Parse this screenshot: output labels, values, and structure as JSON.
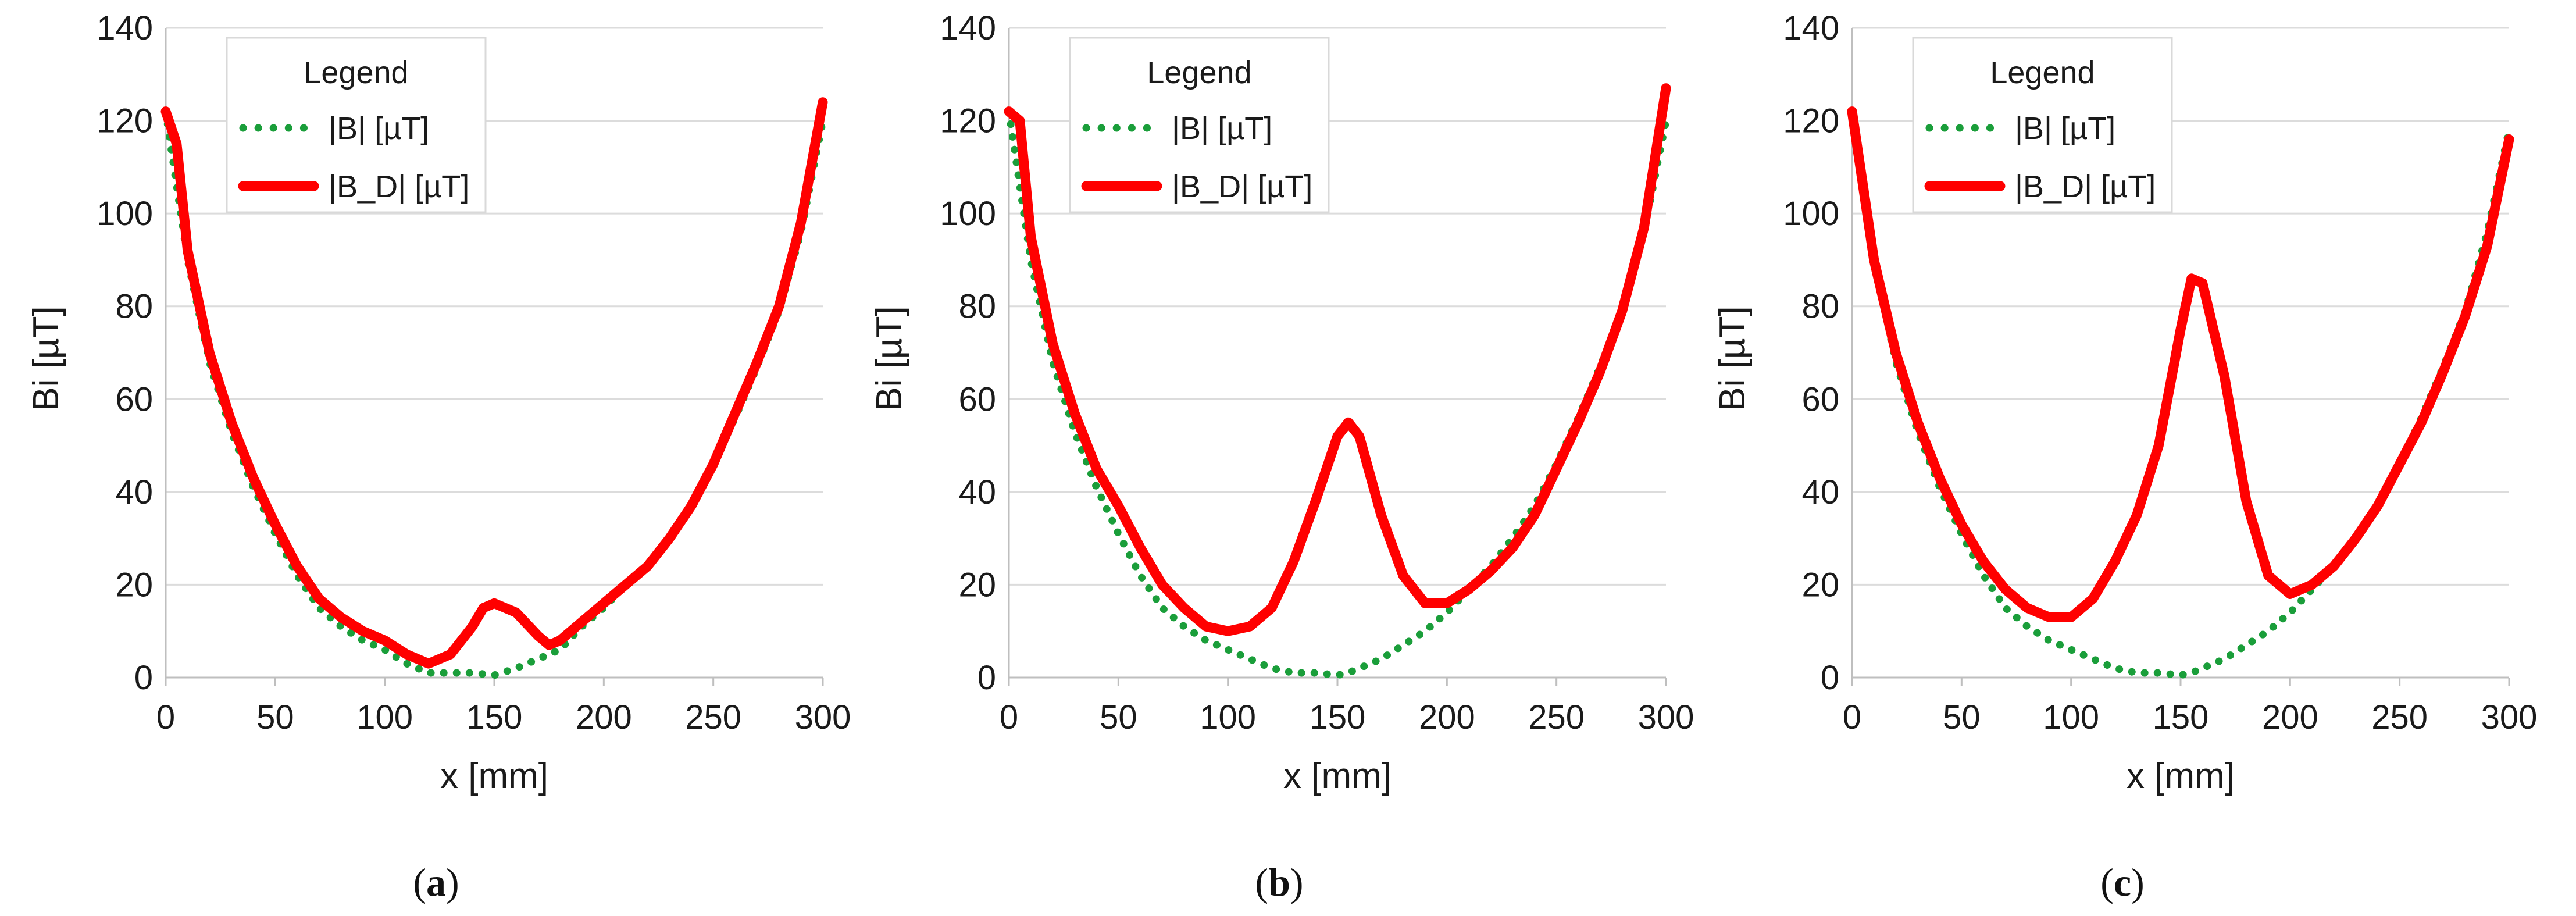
{
  "colors": {
    "series_b": "#1a9e3a",
    "series_bd": "#ff0000",
    "grid": "#dcdcdc",
    "axis": "#bfbfbf"
  },
  "chart_data": [
    {
      "id": "a",
      "type": "line",
      "caption": {
        "open": "(",
        "letter": "a",
        "close": ")"
      },
      "title": "",
      "xlabel": "x [mm]",
      "ylabel": "Bi [µT]",
      "xlim": [
        0,
        300
      ],
      "ylim": [
        0,
        140
      ],
      "xticks": [
        0,
        50,
        100,
        150,
        200,
        250,
        300
      ],
      "yticks": [
        0,
        20,
        40,
        60,
        80,
        100,
        120,
        140
      ],
      "grid": true,
      "legend": {
        "title": "Legend",
        "position": "top-left"
      },
      "series": [
        {
          "name": "|B| [µT]",
          "style": "dotted",
          "color": "#1a9e3a",
          "x": [
            0,
            10,
            20,
            30,
            40,
            50,
            60,
            70,
            80,
            90,
            100,
            110,
            120,
            130,
            140,
            150,
            160,
            170,
            180,
            190,
            200,
            210,
            220,
            230,
            240,
            250,
            260,
            270,
            280,
            290,
            300
          ],
          "y": [
            122,
            90,
            68,
            53,
            41,
            31,
            22,
            15,
            11,
            8,
            6,
            3,
            1,
            1,
            1,
            0.5,
            2,
            4,
            6,
            11,
            15,
            20,
            24,
            30,
            37,
            46,
            56,
            67,
            79,
            96,
            120
          ]
        },
        {
          "name": "|B_D| [µT]",
          "style": "solid",
          "color": "#ff0000",
          "x": [
            0,
            5,
            10,
            20,
            30,
            40,
            50,
            60,
            70,
            80,
            90,
            100,
            110,
            120,
            130,
            140,
            145,
            150,
            160,
            170,
            175,
            180,
            190,
            200,
            210,
            220,
            230,
            240,
            250,
            260,
            270,
            280,
            290,
            300
          ],
          "y": [
            122,
            115,
            92,
            70,
            55,
            43,
            33,
            24,
            17,
            13,
            10,
            8,
            5,
            3,
            5,
            11,
            15,
            16,
            14,
            9,
            7,
            8,
            12,
            16,
            20,
            24,
            30,
            37,
            46,
            57,
            68,
            80,
            98,
            124
          ]
        }
      ]
    },
    {
      "id": "b",
      "type": "line",
      "caption": {
        "open": "(",
        "letter": "b",
        "close": ")"
      },
      "title": "",
      "xlabel": "x [mm]",
      "ylabel": "Bi [µT]",
      "xlim": [
        0,
        300
      ],
      "ylim": [
        0,
        140
      ],
      "xticks": [
        0,
        50,
        100,
        150,
        200,
        250,
        300
      ],
      "yticks": [
        0,
        20,
        40,
        60,
        80,
        100,
        120,
        140
      ],
      "grid": true,
      "legend": {
        "title": "Legend",
        "position": "top-left"
      },
      "series": [
        {
          "name": "|B| [µT]",
          "style": "dotted",
          "color": "#1a9e3a",
          "x": [
            0,
            10,
            20,
            30,
            40,
            50,
            60,
            70,
            80,
            90,
            100,
            110,
            120,
            130,
            140,
            150,
            155,
            160,
            170,
            180,
            190,
            200,
            210,
            220,
            230,
            240,
            250,
            260,
            270,
            280,
            290,
            300
          ],
          "y": [
            122,
            90,
            68,
            53,
            41,
            31,
            22,
            15,
            11,
            8,
            6,
            4,
            2,
            1,
            1,
            0.5,
            1,
            2,
            4,
            7,
            10,
            14,
            19,
            24,
            30,
            37,
            46,
            56,
            67,
            79,
            96,
            120
          ]
        },
        {
          "name": "|B_D| [µT]",
          "style": "solid",
          "color": "#ff0000",
          "x": [
            0,
            5,
            10,
            20,
            30,
            40,
            50,
            60,
            70,
            80,
            90,
            100,
            110,
            120,
            130,
            140,
            150,
            155,
            160,
            170,
            180,
            190,
            200,
            210,
            220,
            230,
            240,
            250,
            260,
            270,
            280,
            290,
            300
          ],
          "y": [
            122,
            120,
            95,
            72,
            57,
            45,
            37,
            28,
            20,
            15,
            11,
            10,
            11,
            15,
            25,
            38,
            52,
            55,
            52,
            35,
            22,
            16,
            16,
            19,
            23,
            28,
            35,
            45,
            55,
            66,
            79,
            97,
            127
          ]
        }
      ]
    },
    {
      "id": "c",
      "type": "line",
      "caption": {
        "open": "(",
        "letter": "c",
        "close": ")"
      },
      "title": "",
      "xlabel": "x [mm]",
      "ylabel": "Bi [µT]",
      "xlim": [
        0,
        300
      ],
      "ylim": [
        0,
        140
      ],
      "xticks": [
        0,
        50,
        100,
        150,
        200,
        250,
        300
      ],
      "yticks": [
        0,
        20,
        40,
        60,
        80,
        100,
        120,
        140
      ],
      "grid": true,
      "legend": {
        "title": "Legend",
        "position": "top-left"
      },
      "series": [
        {
          "name": "|B| [µT]",
          "style": "dotted",
          "color": "#1a9e3a",
          "x": [
            0,
            10,
            20,
            30,
            40,
            50,
            60,
            70,
            80,
            90,
            100,
            110,
            120,
            130,
            140,
            150,
            155,
            160,
            170,
            180,
            190,
            200,
            210,
            220,
            230,
            240,
            250,
            260,
            270,
            280,
            290,
            300
          ],
          "y": [
            122,
            90,
            68,
            53,
            41,
            31,
            22,
            15,
            11,
            8,
            6,
            4,
            2,
            1,
            1,
            0.5,
            1,
            2,
            4,
            7,
            10,
            14,
            19,
            24,
            30,
            37,
            46,
            56,
            67,
            79,
            96,
            118
          ]
        },
        {
          "name": "|B_D| [µT]",
          "style": "solid",
          "color": "#ff0000",
          "x": [
            0,
            10,
            20,
            30,
            40,
            50,
            60,
            70,
            80,
            90,
            100,
            110,
            120,
            130,
            140,
            150,
            155,
            160,
            170,
            180,
            190,
            200,
            210,
            220,
            230,
            240,
            250,
            260,
            270,
            280,
            290,
            300
          ],
          "y": [
            122,
            90,
            70,
            55,
            43,
            33,
            25,
            19,
            15,
            13,
            13,
            17,
            25,
            35,
            50,
            75,
            86,
            85,
            65,
            38,
            22,
            18,
            20,
            24,
            30,
            37,
            46,
            55,
            66,
            78,
            93,
            116
          ]
        }
      ]
    }
  ]
}
